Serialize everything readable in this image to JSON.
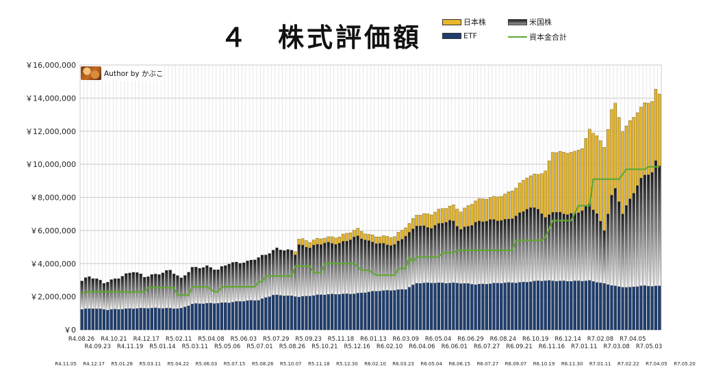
{
  "chart_data": {
    "type": "bar",
    "title": "４　株式評価額",
    "legend": {
      "placement": "top-right",
      "items": [
        {
          "name": "日本株",
          "kind": "bar",
          "color": "#e8b72a"
        },
        {
          "name": "米国株",
          "kind": "bar",
          "color": "#444444"
        },
        {
          "name": "ETF",
          "kind": "bar",
          "color": "#1f3e6e"
        },
        {
          "name": "資本金合計",
          "kind": "line",
          "color": "#5fa832"
        }
      ]
    },
    "author_label": "Author by かぶこ",
    "ylim": [
      0,
      16000000
    ],
    "y_ticks": [
      "￥0",
      "￥2,000,000",
      "￥4,000,000",
      "￥6,000,000",
      "￥8,000,000",
      "￥10,000,000",
      "￥12,000,000",
      "￥14,000,000",
      "￥16,000,000"
    ],
    "grid": true,
    "x_labels_row1": [
      "R4.08.26",
      "R4.09.23",
      "R4.10.21",
      "R4.11.19",
      "R4.12.17",
      "R5.01.14",
      "R5.02.11",
      "R5.03.11",
      "R5.04.08",
      "R5.05.06",
      "R5.06.03",
      "R5.07.01",
      "R5.07.29",
      "R5.08.26",
      "R5.09.23",
      "R5.10.21",
      "R5.11.18",
      "R5.12.16",
      "R6.01.13",
      "R6.02.10",
      "R6.03.09",
      "R6.04.06",
      "R6.05.04",
      "R6.06.01",
      "R6.06.29",
      "R6.07.27",
      "R6.08.24",
      "R6.09.21",
      "R6.10.19",
      "R6.11.16",
      "R6.12.14",
      "R7.01.11",
      "R7.02.08",
      "R7.03.08",
      "R7.04.05",
      "R7.05.03"
    ],
    "x_labels_row2": [
      "R4.11.05",
      "R4.12.17",
      "R5.01.28",
      "R5.03.11",
      "R5.04.22",
      "R5.06.03",
      "R5.07.15",
      "R5.08.26",
      "R5.10.07",
      "R5.11.18",
      "R5.12.30",
      "R6.02.10",
      "R6.03.23",
      "R6.05.04",
      "R6.06.15",
      "R6.07.27",
      "R6.09.07",
      "R6.10.19",
      "R6.11.30",
      "R7.01.11",
      "R7.02.22",
      "R7.04.05",
      "R7.05.20"
    ],
    "series_anchors": {
      "total": [
        [
          0,
          2950000
        ],
        [
          2,
          3200000
        ],
        [
          6,
          2850000
        ],
        [
          9,
          3100000
        ],
        [
          14,
          3500000
        ],
        [
          17,
          3200000
        ],
        [
          24,
          3600000
        ],
        [
          27,
          3050000
        ],
        [
          30,
          3750000
        ],
        [
          34,
          3850000
        ],
        [
          37,
          3600000
        ],
        [
          40,
          4000000
        ],
        [
          45,
          4150000
        ],
        [
          50,
          4500000
        ],
        [
          53,
          4900000
        ],
        [
          58,
          4800000
        ],
        [
          59,
          5500000
        ],
        [
          62,
          5300000
        ],
        [
          66,
          5600000
        ],
        [
          70,
          5650000
        ],
        [
          75,
          6050000
        ],
        [
          78,
          5750000
        ],
        [
          82,
          5650000
        ],
        [
          85,
          5600000
        ],
        [
          89,
          6400000
        ],
        [
          91,
          7000000
        ],
        [
          95,
          7000000
        ],
        [
          98,
          7300000
        ],
        [
          101,
          7500000
        ],
        [
          103,
          7200000
        ],
        [
          107,
          7800000
        ],
        [
          112,
          8000000
        ],
        [
          115,
          8200000
        ],
        [
          118,
          8600000
        ],
        [
          121,
          9200000
        ],
        [
          124,
          9400000
        ],
        [
          126,
          9600000
        ],
        [
          128,
          10800000
        ],
        [
          131,
          10700000
        ],
        [
          134,
          10700000
        ],
        [
          136,
          11000000
        ],
        [
          138,
          12100000
        ],
        [
          140,
          11800000
        ],
        [
          142,
          11000000
        ],
        [
          144,
          13300000
        ],
        [
          145,
          13600000
        ],
        [
          147,
          12000000
        ],
        [
          149,
          12600000
        ],
        [
          151,
          13200000
        ],
        [
          153,
          13700000
        ],
        [
          155,
          13800000
        ],
        [
          156,
          14450000
        ],
        [
          157,
          14200000
        ]
      ],
      "japan": [
        [
          0,
          0
        ],
        [
          57,
          0
        ],
        [
          59,
          350000
        ],
        [
          63,
          350000
        ],
        [
          66,
          350000
        ],
        [
          75,
          450000
        ],
        [
          80,
          400000
        ],
        [
          88,
          550000
        ],
        [
          91,
          650000
        ],
        [
          95,
          800000
        ],
        [
          100,
          900000
        ],
        [
          103,
          1100000
        ],
        [
          107,
          1300000
        ],
        [
          112,
          1400000
        ],
        [
          118,
          1700000
        ],
        [
          124,
          2100000
        ],
        [
          128,
          3600000
        ],
        [
          136,
          3800000
        ],
        [
          138,
          4500000
        ],
        [
          144,
          5200000
        ],
        [
          147,
          5000000
        ],
        [
          152,
          4300000
        ],
        [
          157,
          4300000
        ]
      ],
      "etf": [
        [
          0,
          1250000
        ],
        [
          3,
          1300000
        ],
        [
          7,
          1200000
        ],
        [
          14,
          1300000
        ],
        [
          27,
          1300000
        ],
        [
          30,
          1550000
        ],
        [
          40,
          1650000
        ],
        [
          48,
          1800000
        ],
        [
          52,
          2100000
        ],
        [
          59,
          2000000
        ],
        [
          64,
          2100000
        ],
        [
          75,
          2200000
        ],
        [
          81,
          2350000
        ],
        [
          88,
          2450000
        ],
        [
          91,
          2800000
        ],
        [
          96,
          2850000
        ],
        [
          103,
          2800000
        ],
        [
          107,
          2750000
        ],
        [
          112,
          2800000
        ],
        [
          118,
          2850000
        ],
        [
          124,
          2950000
        ],
        [
          134,
          2950000
        ],
        [
          138,
          2950000
        ],
        [
          143,
          2750000
        ],
        [
          146,
          2600000
        ],
        [
          149,
          2550000
        ],
        [
          152,
          2650000
        ],
        [
          157,
          2650000
        ]
      ],
      "capital": [
        [
          0,
          2200000
        ],
        [
          2,
          2300000
        ],
        [
          12,
          2300000
        ],
        [
          13,
          2250000
        ],
        [
          14,
          2300000
        ],
        [
          17,
          2300000
        ],
        [
          18,
          2550000
        ],
        [
          25,
          2550000
        ],
        [
          26,
          2100000
        ],
        [
          29,
          2100000
        ],
        [
          30,
          2600000
        ],
        [
          34,
          2600000
        ],
        [
          36,
          2300000
        ],
        [
          37,
          2300000
        ],
        [
          38,
          2600000
        ],
        [
          47,
          2600000
        ],
        [
          48,
          2900000
        ],
        [
          49,
          2900000
        ],
        [
          50,
          3250000
        ],
        [
          57,
          3250000
        ],
        [
          58,
          3850000
        ],
        [
          62,
          3850000
        ],
        [
          63,
          3450000
        ],
        [
          65,
          3450000
        ],
        [
          66,
          4000000
        ],
        [
          74,
          4000000
        ],
        [
          76,
          3600000
        ],
        [
          78,
          3600000
        ],
        [
          80,
          3300000
        ],
        [
          85,
          3300000
        ],
        [
          86,
          3700000
        ],
        [
          88,
          3700000
        ],
        [
          89,
          4400000
        ],
        [
          90,
          4100000
        ],
        [
          91,
          4400000
        ],
        [
          97,
          4400000
        ],
        [
          98,
          4650000
        ],
        [
          101,
          4650000
        ],
        [
          102,
          4800000
        ],
        [
          117,
          4800000
        ],
        [
          118,
          5400000
        ],
        [
          125,
          5400000
        ],
        [
          126,
          5600000
        ],
        [
          128,
          6600000
        ],
        [
          133,
          6600000
        ],
        [
          135,
          7500000
        ],
        [
          138,
          7500000
        ],
        [
          139,
          9100000
        ],
        [
          146,
          9100000
        ],
        [
          148,
          9700000
        ],
        [
          153,
          9700000
        ],
        [
          154,
          9850000
        ],
        [
          157,
          9850000
        ]
      ]
    },
    "num_periods": 158
  }
}
